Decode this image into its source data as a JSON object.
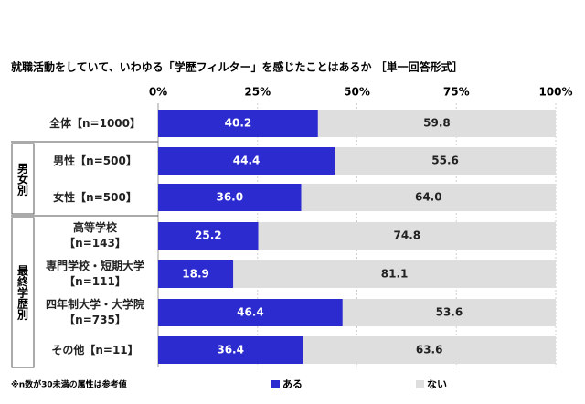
{
  "chart_data": {
    "type": "stacked-bar-horizontal",
    "title": "就職活動をしていて、いわゆる「学歴フィルター」を感じたことはあるか ［単一回答形式］",
    "categories": [
      "全体【n=1000】",
      "男性【n=500】",
      "女性【n=500】",
      "高等学校\n【n=143】",
      "専門学校・短期大学\n【n=111】",
      "四年制大学・大学院\n【n=735】",
      "その他【n=11】"
    ],
    "groups": [
      "男女別",
      "最終学歴別"
    ],
    "series": [
      {
        "name": "ある",
        "color": "#2b2bd0",
        "values": [
          40.2,
          44.4,
          36.0,
          25.2,
          18.9,
          46.4,
          36.4
        ],
        "value_labels": [
          "40.2",
          "44.4",
          "36.0",
          "25.2",
          "18.9",
          "46.4",
          "36.4"
        ]
      },
      {
        "name": "ない",
        "color": "#dedede",
        "values": [
          59.8,
          55.6,
          64.0,
          74.8,
          81.1,
          53.6,
          63.6
        ],
        "value_labels": [
          "59.8",
          "55.6",
          "64.0",
          "74.8",
          "81.1",
          "53.6",
          "63.6"
        ]
      }
    ],
    "xlim": [
      0,
      100
    ],
    "xticks": [
      {
        "value": 0,
        "label": "0%"
      },
      {
        "value": 25,
        "label": "25%"
      },
      {
        "value": 50,
        "label": "50%"
      },
      {
        "value": 75,
        "label": "75%"
      },
      {
        "value": 100,
        "label": "100%"
      }
    ],
    "grid": true,
    "footnote": "※n数が30未満の属性は参考値"
  }
}
